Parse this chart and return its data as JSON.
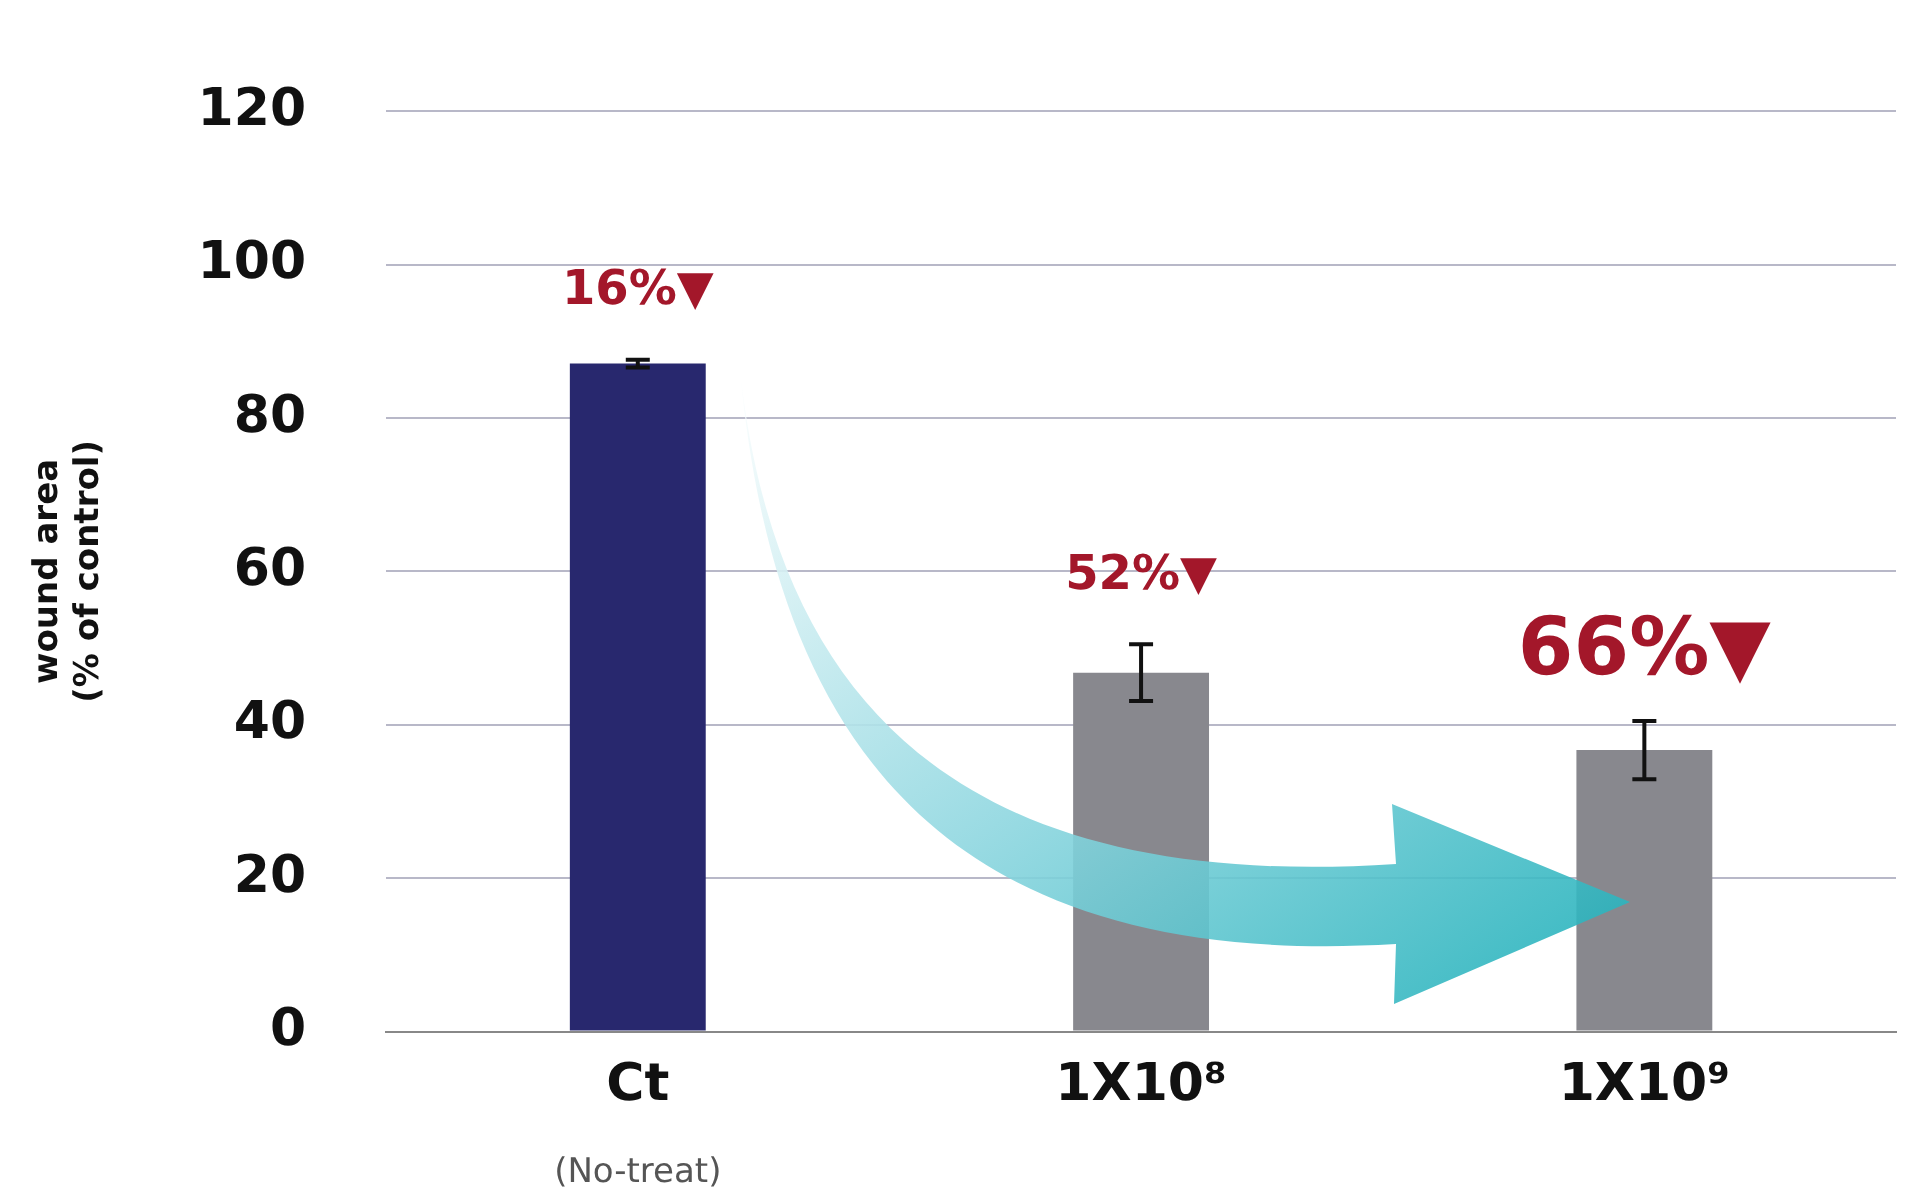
{
  "chart_data": {
    "type": "bar",
    "ylabel": "wound area\n(% of control)",
    "categories": [
      "Ct",
      "1X10⁸",
      "1X10⁹"
    ],
    "values": [
      87.1,
      46.8,
      36.7
    ],
    "colors": [
      "#28286e",
      "#88888e",
      "#88888e"
    ],
    "errors": [
      0.5,
      3.7,
      3.8
    ],
    "ylim": [
      0,
      120
    ],
    "yticks": [
      0,
      20,
      40,
      60,
      80,
      100,
      120
    ],
    "grid": "y",
    "legend": false,
    "annotations": [
      {
        "text": "16%▼",
        "x": "Ct",
        "y": 87.1
      },
      {
        "text": "52%▼",
        "x": "1X10⁸",
        "y": 46.8
      },
      {
        "text": "66%▼",
        "x": "1X10⁹",
        "y": 36.7
      },
      "(No-treat)"
    ]
  }
}
